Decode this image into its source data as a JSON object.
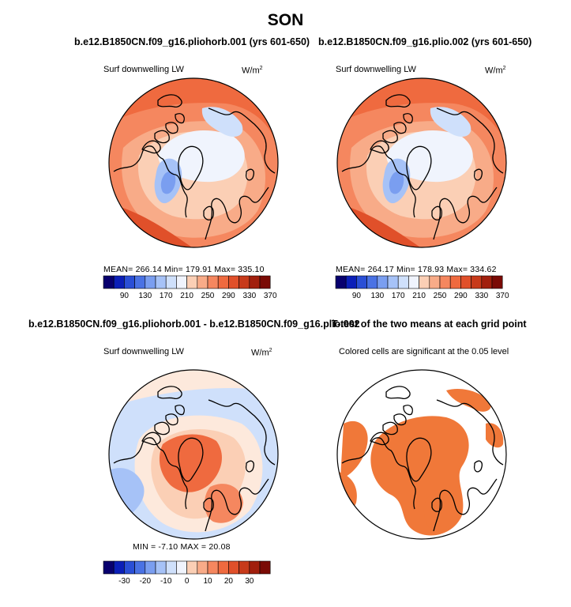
{
  "title": "SON",
  "colors": {
    "diverging": [
      "#08006e",
      "#0b1fb8",
      "#2a4fd6",
      "#4a72e4",
      "#7a9ef0",
      "#a6c2f7",
      "#cfe0fb",
      "#f0f4fd",
      "#fde9dc",
      "#fbcfb5",
      "#f8ab88",
      "#f5875f",
      "#ef6a3f",
      "#e0502a",
      "#c73a1a",
      "#a11f0d",
      "#7a0a05"
    ],
    "significant": "#f07839",
    "coast": "#000000"
  },
  "panels": [
    {
      "id": "p1",
      "title": "b.e12.B1850CN.f09_g16.pliohorb.001 (yrs 601-650)",
      "variable": "Surf downwelling LW",
      "units_base": "W/m",
      "units_exp": "2",
      "stats": "MEAN= 266.14   Min= 179.91   Max= 335.10",
      "colorbar_ticks": [
        "90",
        "130",
        "170",
        "210",
        "250",
        "290",
        "330",
        "370"
      ]
    },
    {
      "id": "p2",
      "title": "b.e12.B1850CN.f09_g16.plio.002 (yrs 601-650)",
      "variable": "Surf downwelling LW",
      "units_base": "W/m",
      "units_exp": "2",
      "stats": "MEAN= 264.17   Min= 178.93   Max= 334.62",
      "colorbar_ticks": [
        "90",
        "130",
        "170",
        "210",
        "250",
        "290",
        "330",
        "370"
      ]
    },
    {
      "id": "p3",
      "title": "b.e12.B1850CN.f09_g16.pliohorb.001 - b.e12.B1850CN.f09_g16.plio.002",
      "variable": "Surf downwelling LW",
      "units_base": "W/m",
      "units_exp": "2",
      "stats": "MIN =   -7.10  MAX =  20.08",
      "colorbar_ticks": [
        "-30",
        "-20",
        "-10",
        "0",
        "10",
        "20",
        "30"
      ]
    },
    {
      "id": "p4",
      "title": "T-test of the two means at each grid point",
      "subtitle": "Colored cells are significant at the 0.05 level"
    }
  ],
  "chart_data": [
    {
      "type": "heatmap",
      "title": "b.e12.B1850CN.f09_g16.pliohorb.001 (yrs 601-650)",
      "projection": "north polar stereographic",
      "variable": "Surf downwelling LW",
      "units": "W/m2",
      "mean": 266.14,
      "min": 179.91,
      "max": 335.1,
      "levels": [
        90,
        110,
        130,
        150,
        170,
        190,
        210,
        230,
        250,
        270,
        290,
        310,
        330,
        350,
        370
      ]
    },
    {
      "type": "heatmap",
      "title": "b.e12.B1850CN.f09_g16.plio.002 (yrs 601-650)",
      "projection": "north polar stereographic",
      "variable": "Surf downwelling LW",
      "units": "W/m2",
      "mean": 264.17,
      "min": 178.93,
      "max": 334.62,
      "levels": [
        90,
        110,
        130,
        150,
        170,
        190,
        210,
        230,
        250,
        270,
        290,
        310,
        330,
        350,
        370
      ]
    },
    {
      "type": "heatmap",
      "title": "b.e12.B1850CN.f09_g16.pliohorb.001 - b.e12.B1850CN.f09_g16.plio.002",
      "projection": "north polar stereographic",
      "variable": "Surf downwelling LW",
      "units": "W/m2",
      "min": -7.1,
      "max": 20.08,
      "levels": [
        -35,
        -30,
        -25,
        -20,
        -15,
        -10,
        -5,
        0,
        5,
        10,
        15,
        20,
        25,
        30,
        35
      ]
    },
    {
      "type": "heatmap",
      "title": "T-test of the two means at each grid point",
      "projection": "north polar stereographic",
      "significance_level": 0.05
    }
  ]
}
